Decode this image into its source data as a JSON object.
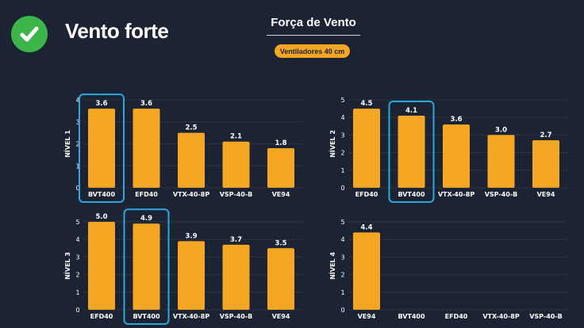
{
  "header": {
    "status_icon": "check-circle-icon",
    "status_text": "Vento forte",
    "title": "Força de Vento",
    "badge": "Ventiladores 40 cm"
  },
  "colors": {
    "background": "#1c2333",
    "bar": "#f5a623",
    "highlight": "#2aa8e0",
    "check": "#3cb54a"
  },
  "chart_data": [
    {
      "type": "bar",
      "ylabel": "NÍVEL 1",
      "ylim": [
        0,
        4
      ],
      "yticks": [
        0,
        1,
        2,
        3,
        4
      ],
      "grid": true,
      "categories": [
        "BVT400",
        "EFD40",
        "VTX-40-8P",
        "VSP-40-B",
        "VE94"
      ],
      "values": [
        3.6,
        3.6,
        2.5,
        2.1,
        1.8
      ],
      "labels": [
        "3.6",
        "3.6",
        "2.5",
        "2.1",
        "1.8"
      ],
      "highlight": "BVT400"
    },
    {
      "type": "bar",
      "ylabel": "NÍVEL 2",
      "ylim": [
        0,
        5
      ],
      "yticks": [
        0,
        1,
        2,
        3,
        4,
        5
      ],
      "grid": true,
      "categories": [
        "EFD40",
        "BVT400",
        "VTX-40-8P",
        "VSP-40-B",
        "VE94"
      ],
      "values": [
        4.5,
        4.1,
        3.6,
        3.0,
        2.7
      ],
      "labels": [
        "4.5",
        "4.1",
        "3.6",
        "3.0",
        "2.7"
      ],
      "highlight": "BVT400"
    },
    {
      "type": "bar",
      "ylabel": "NÍVEL 3",
      "ylim": [
        0,
        5
      ],
      "yticks": [
        0,
        1,
        2,
        3,
        4,
        5
      ],
      "grid": true,
      "categories": [
        "EFD40",
        "BVT400",
        "VTX-40-8P",
        "VSP-40-B",
        "VE94"
      ],
      "values": [
        5.0,
        4.9,
        3.9,
        3.7,
        3.5
      ],
      "labels": [
        "5.0",
        "4.9",
        "3.9",
        "3.7",
        "3.5"
      ],
      "highlight": "BVT400"
    },
    {
      "type": "bar",
      "ylabel": "NÍVEL 4",
      "ylim": [
        0,
        5
      ],
      "yticks": [
        0,
        1,
        2,
        3,
        4,
        5
      ],
      "grid": true,
      "categories": [
        "VE94",
        "BVT400",
        "EFD40",
        "VTX-40-8P",
        "VSP-40-B"
      ],
      "values": [
        4.4,
        null,
        null,
        null,
        null
      ],
      "labels": [
        "4.4",
        "",
        "",
        "",
        ""
      ],
      "highlight": null
    }
  ]
}
